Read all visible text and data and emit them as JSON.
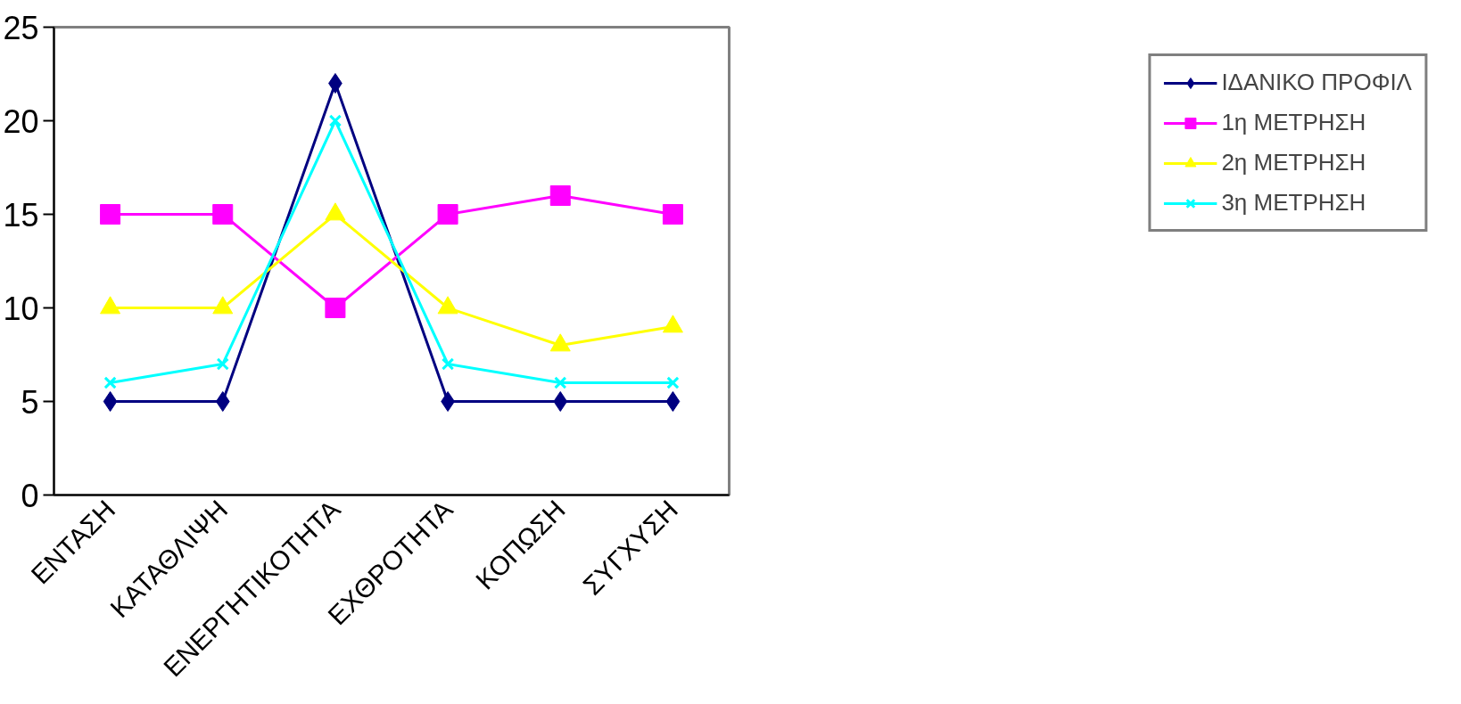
{
  "chart_data": {
    "type": "line",
    "categories": [
      "ΕΝΤΑΣΗ",
      "ΚΑΤΑΘΛΙΨΗ",
      "ΕΝΕΡΓΗΤΙΚΟΤΗΤΑ",
      "ΕΧΘΡΟΤΗΤΑ",
      "ΚΟΠΩΣΗ",
      "ΣΥΓΧΥΣΗ"
    ],
    "series": [
      {
        "name": "ΙΔΑΝΙΚΟ ΠΡΟΦΙΛ",
        "color": "#000080",
        "marker": "diamond",
        "values": [
          5,
          5,
          22,
          5,
          5,
          5
        ]
      },
      {
        "name": "1η ΜΕΤΡΗΣΗ",
        "color": "#ff00ff",
        "marker": "square",
        "values": [
          15,
          15,
          10,
          15,
          16,
          15
        ]
      },
      {
        "name": "2η ΜΕΤΡΗΣΗ",
        "color": "#ffff00",
        "marker": "triangle",
        "values": [
          10,
          10,
          15,
          10,
          8,
          9
        ]
      },
      {
        "name": "3η ΜΕΤΡΗΣΗ",
        "color": "#00ffff",
        "marker": "cross",
        "values": [
          6,
          7,
          20,
          7,
          6,
          6
        ]
      }
    ],
    "ylim": [
      0,
      25
    ],
    "yticks": [
      0,
      5,
      10,
      15,
      20,
      25
    ],
    "grid": false,
    "legend": "right",
    "line_style": "solid"
  }
}
